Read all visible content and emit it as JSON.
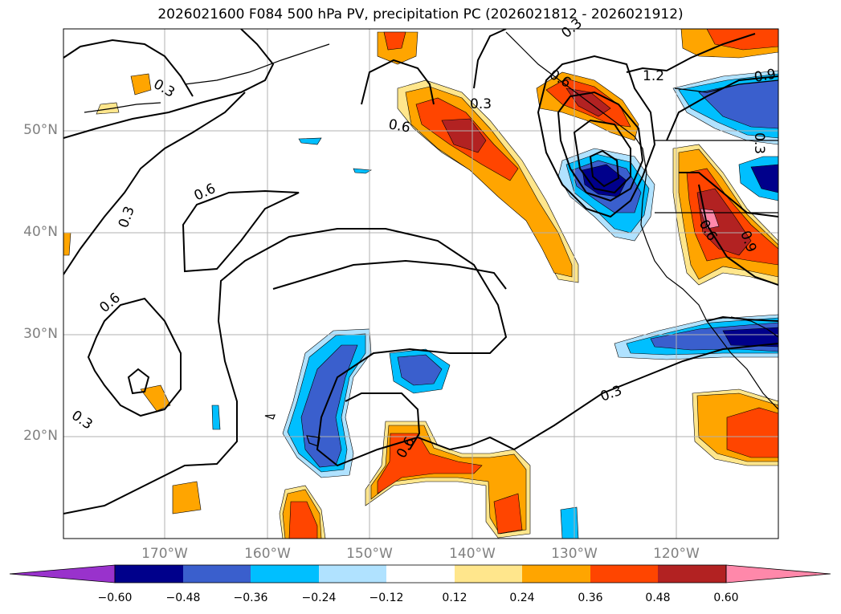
{
  "title": "2026021600 F084 500 hPa PV, precipitation PC (2026021812 - 2026021912)",
  "map": {
    "lat_labels": [
      "50°N",
      "40°N",
      "30°N",
      "20°N"
    ],
    "lon_labels": [
      "170°W",
      "160°W",
      "150°W",
      "140°W",
      "130°W",
      "120°W"
    ],
    "contour_labels": [
      "0.3",
      "0.6",
      "0.3",
      "0.6",
      "0.3",
      "0.3",
      "0.6",
      "0.3",
      "0.6",
      "0.6",
      "0.3",
      "1.2",
      "0.9",
      "0.3",
      "0.6",
      "0.9"
    ]
  },
  "colorbar": {
    "ticks": [
      "−0.60",
      "−0.48",
      "−0.36",
      "−0.24",
      "−0.12",
      "0.12",
      "0.24",
      "0.36",
      "0.48",
      "0.60"
    ],
    "colors": [
      "#9932cc",
      "#00008b",
      "#3a5fcd",
      "#00bfff",
      "#b0e2ff",
      "#ffffff",
      "#ffe68c",
      "#ffa500",
      "#ff4500",
      "#b22222",
      "#ff88aa"
    ]
  },
  "colors": {
    "grid": "#b0b0b0",
    "contour": "#000000",
    "label_gray": "#808080"
  }
}
